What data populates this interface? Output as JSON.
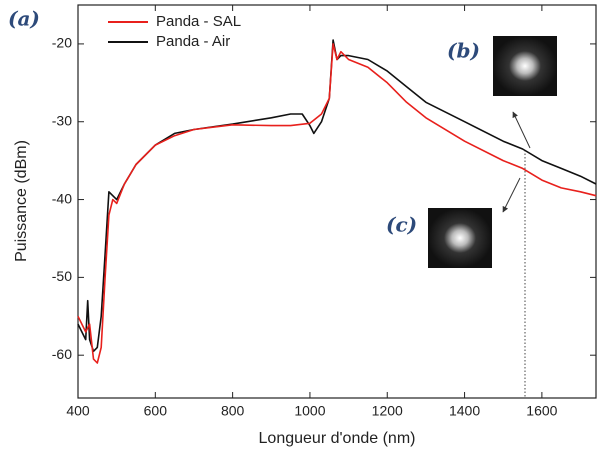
{
  "chart_data": {
    "type": "line",
    "xlabel": "Longueur d'onde (nm)",
    "ylabel": "Puissance (dBm)",
    "xlim": [
      400,
      1740
    ],
    "xticks": [
      400,
      600,
      800,
      1000,
      1200,
      1400,
      1600
    ],
    "ylim": [
      -65.5,
      -15
    ],
    "yticks": [
      -20,
      -30,
      -40,
      -50,
      -60
    ],
    "legend": "top-left",
    "annotations": [
      "(a)",
      "(b)",
      "(c)"
    ],
    "series": [
      {
        "name": "Panda - SAL",
        "color": "#e8201c",
        "x": [
          400,
          420,
          430,
          440,
          450,
          460,
          470,
          480,
          490,
          500,
          520,
          550,
          600,
          650,
          700,
          800,
          900,
          950,
          1000,
          1030,
          1050,
          1060,
          1070,
          1080,
          1100,
          1150,
          1200,
          1250,
          1300,
          1400,
          1500,
          1550,
          1600,
          1650,
          1700,
          1740
        ],
        "values": [
          -55,
          -57,
          -56,
          -60.5,
          -61,
          -59,
          -50,
          -42,
          -40,
          -40.5,
          -38,
          -35.5,
          -33,
          -31.8,
          -31,
          -30.4,
          -30.5,
          -30.5,
          -30.2,
          -29,
          -27,
          -20,
          -22,
          -21,
          -22,
          -23,
          -25,
          -27.5,
          -29.5,
          -32.5,
          -35,
          -36,
          -37.5,
          -38.5,
          -39,
          -39.5
        ]
      },
      {
        "name": "Panda - Air",
        "color": "#111111",
        "x": [
          400,
          420,
          425,
          430,
          440,
          450,
          460,
          470,
          480,
          490,
          500,
          520,
          550,
          600,
          650,
          700,
          800,
          900,
          950,
          980,
          1000,
          1010,
          1030,
          1050,
          1060,
          1070,
          1080,
          1100,
          1150,
          1200,
          1250,
          1300,
          1400,
          1500,
          1550,
          1600,
          1650,
          1700,
          1740
        ],
        "values": [
          -56,
          -58,
          -53,
          -58,
          -59.5,
          -59,
          -55,
          -47,
          -39,
          -39.5,
          -40,
          -38,
          -35.5,
          -33,
          -31.5,
          -31,
          -30.3,
          -29.5,
          -29,
          -29,
          -30.5,
          -31.5,
          -30,
          -27,
          -19.5,
          -22,
          -21.5,
          -21.5,
          -22,
          -23.5,
          -25.5,
          -27.5,
          -30,
          -32.5,
          -33.5,
          -35,
          -36,
          -37,
          -38
        ]
      }
    ]
  }
}
